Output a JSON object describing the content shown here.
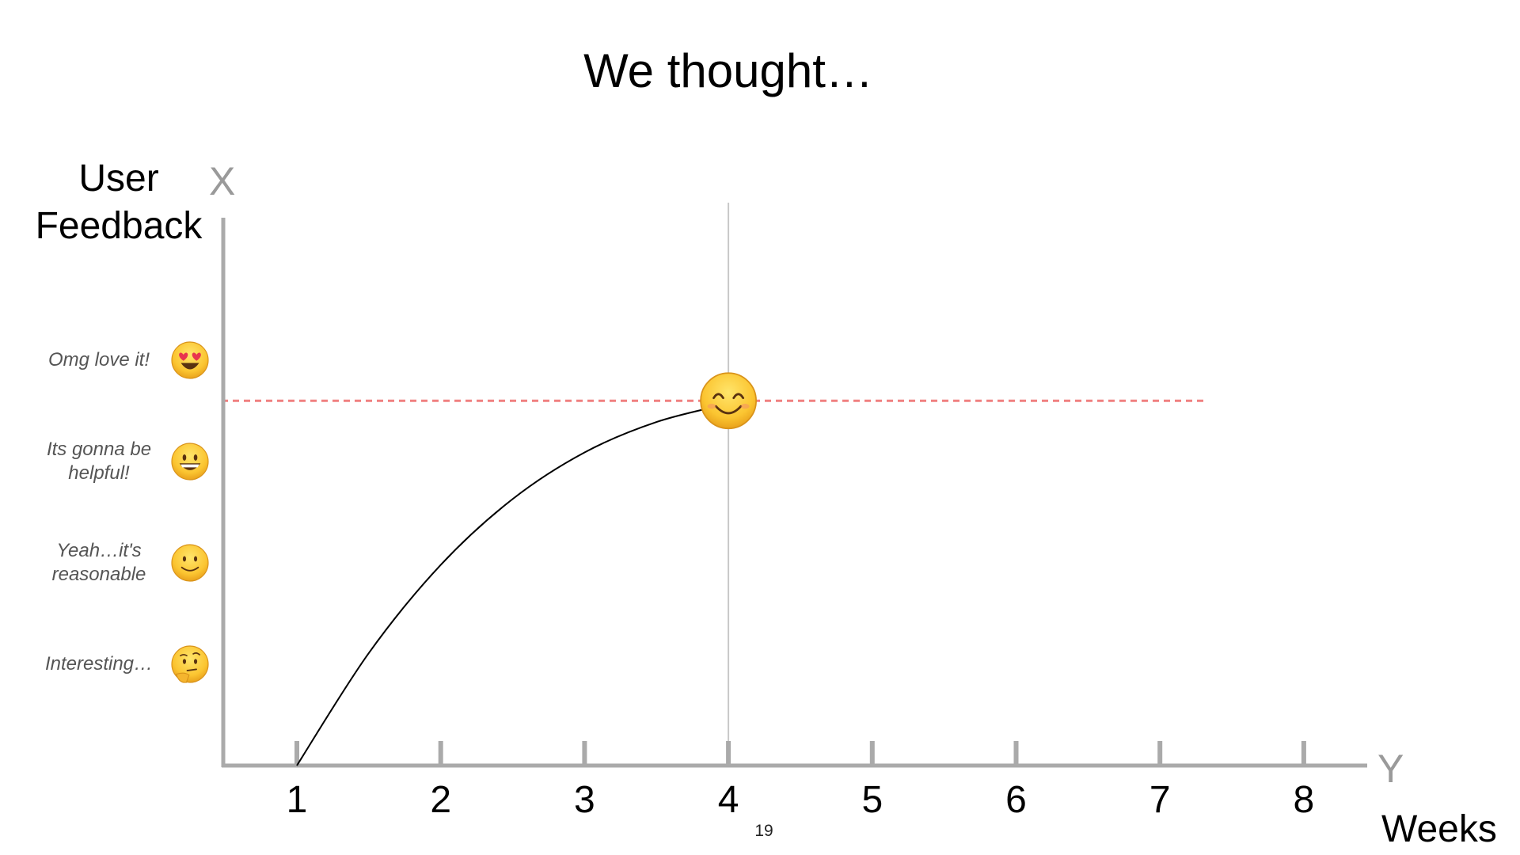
{
  "slide": {
    "title": "We thought…",
    "page_number": "19",
    "corner_letters": {
      "vertical": "X",
      "horizontal": "Y"
    }
  },
  "chart_data": {
    "type": "line",
    "xlabel": "Weeks",
    "ylabel": "User Feedback",
    "x_ticks": [
      "1",
      "2",
      "3",
      "4",
      "5",
      "6",
      "7",
      "8"
    ],
    "xlim": [
      0.5,
      8.4
    ],
    "ylim": [
      0,
      5.4
    ],
    "y_levels": [
      {
        "label": "Interesting…",
        "value": 1,
        "icon": "thinking-face-icon"
      },
      {
        "label": "Yeah…it's reasonable",
        "value": 2,
        "icon": "slightly-smiling-face-icon"
      },
      {
        "label": "Its gonna be helpful!",
        "value": 3,
        "icon": "grinning-face-icon"
      },
      {
        "label": "Omg love it!",
        "value": 4,
        "icon": "heart-eyes-face-icon"
      }
    ],
    "series": [
      {
        "x": [
          1,
          1.5,
          2,
          2.5,
          3,
          3.5,
          4
        ],
        "y": [
          0,
          1.11,
          1.98,
          2.63,
          3.09,
          3.39,
          3.57
        ]
      }
    ],
    "highlight_point": {
      "x": 4,
      "y": 3.6,
      "icon": "smiling-face-icon"
    },
    "reference_lines": {
      "horizontal_y": 3.6,
      "vertical_x": 4
    },
    "colors": {
      "axis": "#aaaaaa",
      "dashed_line": "#f08080",
      "curve": "#000000",
      "vertical_line": "#c8c8c8"
    }
  }
}
